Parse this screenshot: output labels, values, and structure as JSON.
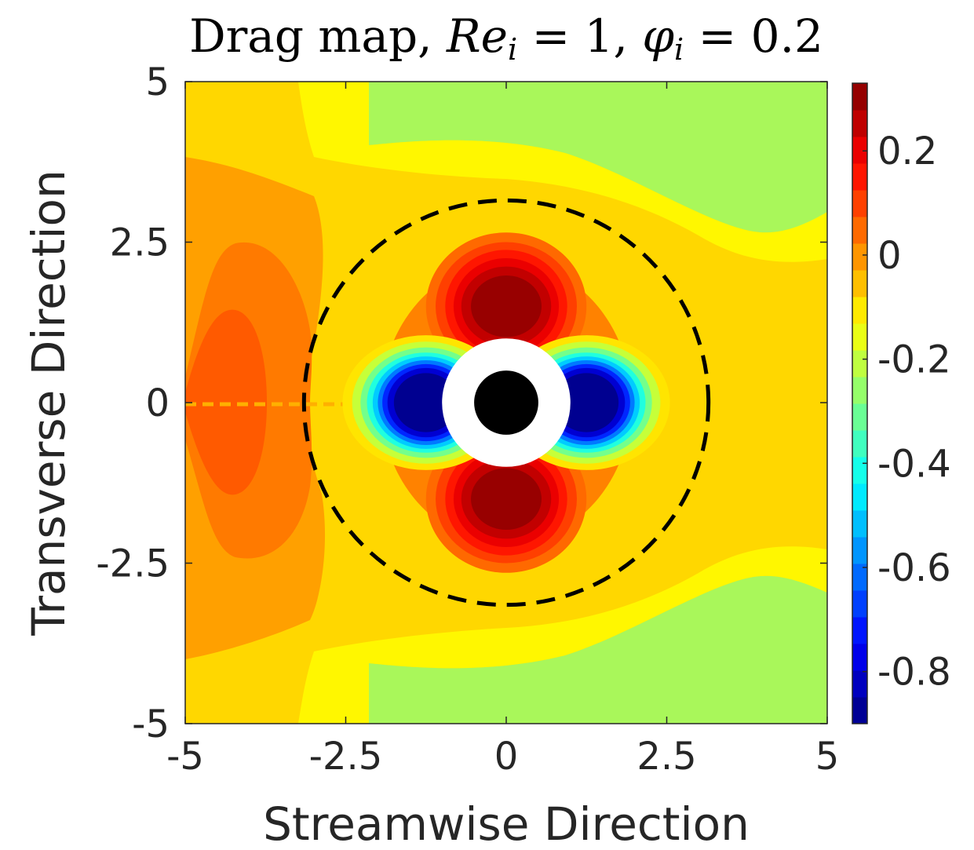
{
  "chart_data": {
    "type": "heatmap",
    "title": {
      "text_prefix": "Drag map, ",
      "re_symbol": "Re",
      "re_subscript": "i",
      "re_value": " = 1, ",
      "phi_symbol": "φ",
      "phi_subscript": "i",
      "phi_value": " = 0.2"
    },
    "xlabel": "Streamwise Direction",
    "ylabel": "Transverse Direction",
    "xlim": [
      -5,
      5
    ],
    "ylim": [
      -5,
      5
    ],
    "xticks": [
      {
        "value": -5,
        "label": "-5"
      },
      {
        "value": -2.5,
        "label": "-2.5"
      },
      {
        "value": 0,
        "label": "0"
      },
      {
        "value": 2.5,
        "label": "2.5"
      },
      {
        "value": 5,
        "label": "5"
      }
    ],
    "yticks": [
      {
        "value": 5,
        "label": "5"
      },
      {
        "value": 2.5,
        "label": "2.5"
      },
      {
        "value": 0,
        "label": "0"
      },
      {
        "value": -2.5,
        "label": "-2.5"
      },
      {
        "value": -5,
        "label": "-5"
      }
    ],
    "colorbar": {
      "colormap": "jet",
      "range": [
        -0.9,
        0.33
      ],
      "ticks": [
        {
          "value": 0.2,
          "label": "0.2"
        },
        {
          "value": 0,
          "label": "0"
        },
        {
          "value": -0.2,
          "label": "-0.2"
        },
        {
          "value": -0.4,
          "label": "-0.4"
        },
        {
          "value": -0.6,
          "label": "-0.6"
        },
        {
          "value": -0.8,
          "label": "-0.8"
        }
      ],
      "levels": 24
    },
    "features": {
      "particle_radius": 0.5,
      "exclusion_radius": 1.0,
      "dashed_circle_radius": 3.15
    }
  }
}
